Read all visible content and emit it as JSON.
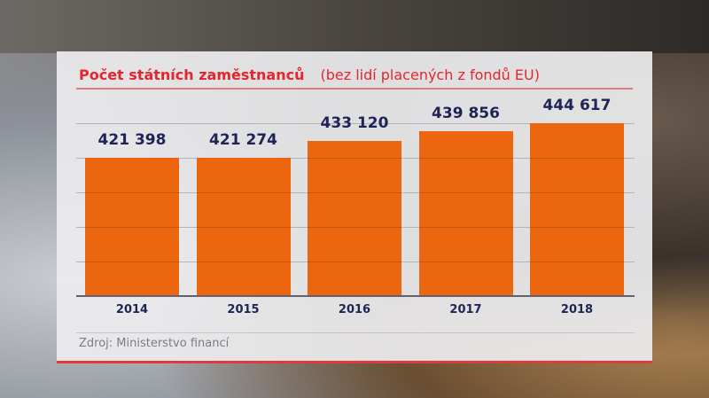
{
  "chart_data": {
    "type": "bar",
    "title": "Počet státních zaměstnanců",
    "subtitle": "(bez lidí placených z fondů EU)",
    "categories": [
      "2014",
      "2015",
      "2016",
      "2017",
      "2018"
    ],
    "values": [
      421398,
      421274,
      433120,
      439856,
      444617
    ],
    "value_labels": [
      "421 398",
      "421 274",
      "433 120",
      "439 856",
      "444 617"
    ],
    "xlabel": "",
    "ylabel": "",
    "grid": true,
    "bar_color": "#ec6610",
    "source": "Zdroj: Ministerstvo financí"
  }
}
